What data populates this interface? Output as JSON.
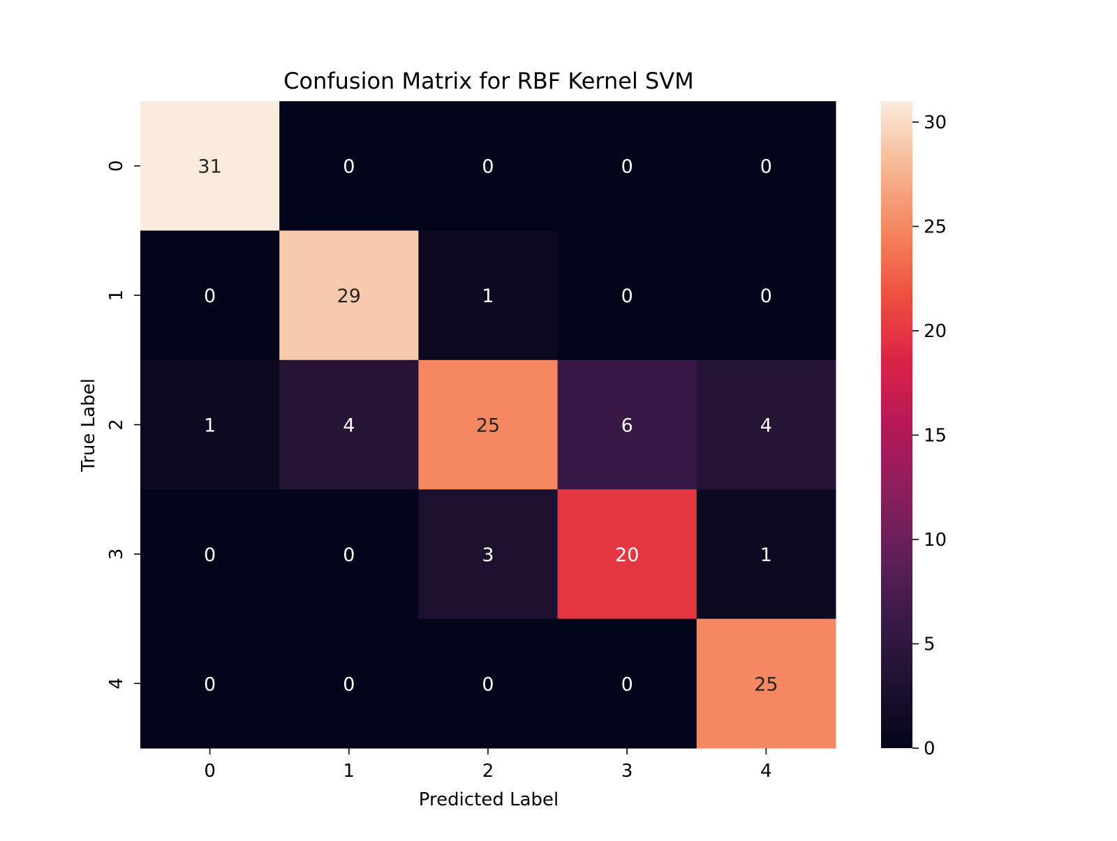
{
  "chart_data": {
    "type": "heatmap",
    "title": "Confusion Matrix for RBF Kernel SVM",
    "xlabel": "Predicted Label",
    "ylabel": "True Label",
    "x_categories": [
      "0",
      "1",
      "2",
      "3",
      "4"
    ],
    "y_categories": [
      "0",
      "1",
      "2",
      "3",
      "4"
    ],
    "matrix": [
      [
        31,
        0,
        0,
        0,
        0
      ],
      [
        0,
        29,
        1,
        0,
        0
      ],
      [
        1,
        4,
        25,
        6,
        4
      ],
      [
        0,
        0,
        3,
        20,
        1
      ],
      [
        0,
        0,
        0,
        0,
        25
      ]
    ],
    "colormap": "rocket",
    "colorbar": {
      "min": 0,
      "max": 31,
      "ticks": [
        0,
        5,
        10,
        15,
        20,
        25,
        30
      ],
      "tick_labels": [
        "0",
        "5",
        "10",
        "15",
        "20",
        "25",
        "30"
      ]
    },
    "annotations": true,
    "legend": "colorbar-right"
  }
}
